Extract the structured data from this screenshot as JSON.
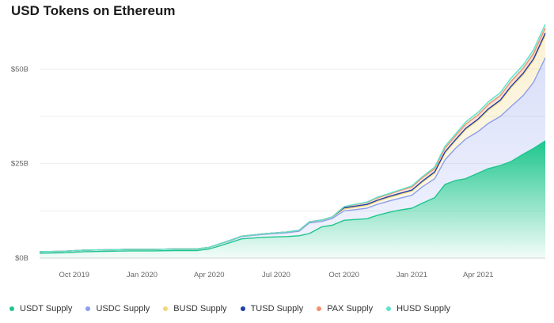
{
  "title": "USD Tokens on Ethereum",
  "chart_data": {
    "type": "area",
    "stacked": true,
    "title": "USD Tokens on Ethereum",
    "x_axis_type": "date",
    "x_range": [
      "2019-08-15",
      "2021-07-01"
    ],
    "x_ticks": [
      {
        "date": "2019-10-01",
        "label": "Oct 2019"
      },
      {
        "date": "2020-01-01",
        "label": "Jan 2020"
      },
      {
        "date": "2020-04-01",
        "label": "Apr 2020"
      },
      {
        "date": "2020-07-01",
        "label": "Jul 2020"
      },
      {
        "date": "2020-10-01",
        "label": "Oct 2020"
      },
      {
        "date": "2021-01-01",
        "label": "Jan 2021"
      },
      {
        "date": "2021-04-01",
        "label": "Apr 2021"
      }
    ],
    "y_ticks": [
      {
        "value": 0,
        "label": "$0B"
      },
      {
        "value": 25,
        "label": "$25B"
      },
      {
        "value": 50,
        "label": "$50B"
      }
    ],
    "ylim": [
      0,
      62
    ],
    "y_unit": "USD billions",
    "grid": true,
    "legend_position": "bottom",
    "x": [
      "2019-08-15",
      "2019-09-15",
      "2019-10-15",
      "2019-11-15",
      "2019-12-15",
      "2020-01-15",
      "2020-02-15",
      "2020-03-15",
      "2020-04-01",
      "2020-04-15",
      "2020-05-01",
      "2020-05-15",
      "2020-06-15",
      "2020-07-15",
      "2020-08-01",
      "2020-08-15",
      "2020-09-01",
      "2020-09-15",
      "2020-10-01",
      "2020-10-15",
      "2020-11-01",
      "2020-11-15",
      "2020-12-01",
      "2020-12-15",
      "2021-01-01",
      "2021-01-15",
      "2021-02-01",
      "2021-02-15",
      "2021-03-01",
      "2021-03-15",
      "2021-04-01",
      "2021-04-15",
      "2021-05-01",
      "2021-05-15",
      "2021-06-01",
      "2021-06-15",
      "2021-07-01"
    ],
    "series": [
      {
        "name": "USDT Supply",
        "color": "#1ec68d",
        "values": [
          1.3,
          1.4,
          1.7,
          1.8,
          1.9,
          1.9,
          2.0,
          2.0,
          2.4,
          3.2,
          4.2,
          5.1,
          5.5,
          5.7,
          5.9,
          6.5,
          8.3,
          8.7,
          10.0,
          10.2,
          10.4,
          11.3,
          12.1,
          12.7,
          13.2,
          14.5,
          16.0,
          19.5,
          20.5,
          21.0,
          22.5,
          23.7,
          24.5,
          25.5,
          27.5,
          29.0,
          31.0
        ]
      },
      {
        "name": "USDC Supply",
        "color": "#8c9eed",
        "values": [
          0.4,
          0.4,
          0.4,
          0.4,
          0.4,
          0.4,
          0.4,
          0.4,
          0.4,
          0.5,
          0.5,
          0.6,
          0.8,
          1.0,
          1.2,
          2.8,
          1.4,
          1.8,
          2.5,
          2.6,
          2.8,
          2.9,
          3.0,
          3.1,
          3.4,
          4.3,
          5.0,
          6.5,
          8.5,
          10.5,
          11.0,
          12.0,
          13.0,
          14.5,
          15.5,
          17.5,
          22.0
        ]
      },
      {
        "name": "BUSD Supply",
        "color": "#f3d67a",
        "values": [
          0,
          0,
          0,
          0,
          0,
          0,
          0,
          0,
          0.05,
          0.05,
          0.1,
          0.1,
          0.15,
          0.2,
          0.25,
          0.3,
          0.4,
          0.4,
          0.5,
          0.6,
          0.7,
          0.8,
          0.9,
          1.0,
          1.1,
          1.2,
          1.5,
          1.8,
          2.0,
          2.5,
          3.0,
          3.5,
          4.0,
          5.0,
          5.5,
          5.8,
          6.0
        ]
      },
      {
        "name": "TUSD Supply",
        "color": "#1f3fa8",
        "values": [
          0,
          0,
          0,
          0,
          0,
          0,
          0,
          0,
          0,
          0,
          0,
          0,
          0,
          0,
          0,
          0,
          0,
          0,
          0.3,
          0.3,
          0.3,
          0.3,
          0.3,
          0.3,
          0.3,
          0.3,
          0.3,
          0.3,
          0.3,
          0.3,
          0.3,
          0.3,
          0.3,
          0.3,
          0.4,
          0.4,
          0.5
        ]
      },
      {
        "name": "PAX Supply",
        "color": "#f58f6b",
        "values": [
          0,
          0,
          0,
          0,
          0,
          0,
          0,
          0,
          0,
          0,
          0,
          0,
          0,
          0,
          0,
          0,
          0,
          0,
          0.3,
          0.4,
          0.5,
          0.6,
          0.6,
          0.7,
          0.8,
          0.9,
          0.9,
          1.0,
          1.0,
          1.1,
          1.1,
          1.2,
          1.2,
          1.3,
          1.3,
          1.4,
          1.4
        ]
      },
      {
        "name": "HUSD Supply",
        "color": "#5fe3c8",
        "values": [
          0,
          0,
          0,
          0,
          0,
          0,
          0,
          0,
          0,
          0,
          0,
          0,
          0,
          0,
          0,
          0,
          0,
          0,
          0,
          0.1,
          0.1,
          0.2,
          0.2,
          0.2,
          0.3,
          0.3,
          0.4,
          0.5,
          0.5,
          0.6,
          0.7,
          0.7,
          0.8,
          0.9,
          0.9,
          1.0,
          1.0
        ]
      }
    ]
  }
}
